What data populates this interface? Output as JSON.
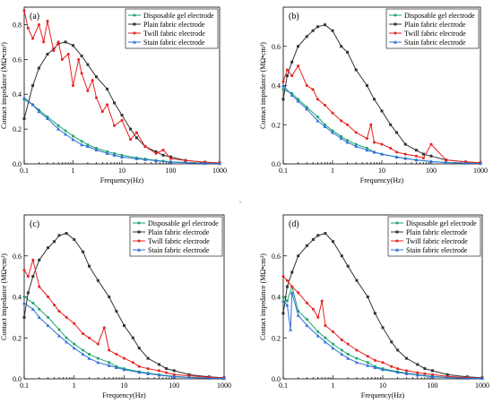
{
  "figure": {
    "center_mark": "."
  },
  "chart_data": [
    {
      "type": "line",
      "panel_label": "(a)",
      "xlabel": "Frequency(Hz)",
      "ylabel": "Contact impedance (MΩ•cm²)",
      "xscale": "log",
      "xlim": [
        0.1,
        1000
      ],
      "ylim": [
        0.0,
        0.9
      ],
      "xticks": [
        "0.1",
        "1",
        "10",
        "100",
        "1000"
      ],
      "yticks": [
        "0.0",
        "0.2",
        "0.4",
        "0.6",
        "0.8"
      ],
      "legend_position": "top-right",
      "series": [
        {
          "name": "Disposable gel electrode",
          "color": "#1aa56a",
          "marker": "circle",
          "x": [
            0.1,
            0.15,
            0.2,
            0.3,
            0.5,
            0.7,
            1,
            1.5,
            2,
            3,
            5,
            7,
            10,
            20,
            30,
            50,
            70,
            100,
            200,
            500,
            1000
          ],
          "y": [
            0.37,
            0.34,
            0.31,
            0.27,
            0.22,
            0.19,
            0.16,
            0.13,
            0.11,
            0.09,
            0.07,
            0.06,
            0.05,
            0.035,
            0.028,
            0.02,
            0.016,
            0.012,
            0.008,
            0.004,
            0.002
          ]
        },
        {
          "name": "Plain fabric electrode",
          "color": "#333333",
          "marker": "square",
          "x": [
            0.1,
            0.15,
            0.2,
            0.3,
            0.4,
            0.5,
            0.7,
            1,
            1.5,
            2,
            3,
            5,
            7,
            10,
            15,
            20,
            30,
            50,
            70,
            100,
            200,
            500,
            1000
          ],
          "y": [
            0.26,
            0.45,
            0.55,
            0.63,
            0.66,
            0.69,
            0.7,
            0.68,
            0.62,
            0.57,
            0.5,
            0.43,
            0.35,
            0.28,
            0.2,
            0.15,
            0.1,
            0.07,
            0.05,
            0.04,
            0.02,
            0.01,
            0.005
          ]
        },
        {
          "name": "Twill fabric electrode",
          "color": "#e8211f",
          "marker": "circle",
          "x": [
            0.1,
            0.12,
            0.15,
            0.2,
            0.25,
            0.3,
            0.4,
            0.5,
            0.6,
            0.8,
            1,
            1.3,
            1.5,
            2,
            2.5,
            3,
            4,
            5,
            7,
            10,
            15,
            20,
            30,
            50,
            70,
            100,
            200,
            500,
            1000
          ],
          "y": [
            0.88,
            0.78,
            0.72,
            0.8,
            0.7,
            0.82,
            0.65,
            0.7,
            0.6,
            0.63,
            0.45,
            0.6,
            0.52,
            0.42,
            0.48,
            0.38,
            0.3,
            0.34,
            0.22,
            0.25,
            0.14,
            0.18,
            0.1,
            0.06,
            0.08,
            0.03,
            0.02,
            0.01,
            0.005
          ]
        },
        {
          "name": "Stain fabric electrode",
          "color": "#2f6fd8",
          "marker": "triangle",
          "x": [
            0.1,
            0.15,
            0.2,
            0.3,
            0.5,
            0.7,
            1,
            1.5,
            2,
            3,
            5,
            7,
            10,
            20,
            30,
            50,
            100,
            200,
            500,
            1000
          ],
          "y": [
            0.38,
            0.34,
            0.3,
            0.26,
            0.2,
            0.17,
            0.14,
            0.11,
            0.1,
            0.08,
            0.06,
            0.05,
            0.04,
            0.03,
            0.025,
            0.018,
            0.01,
            0.006,
            0.003,
            0.002
          ]
        }
      ]
    },
    {
      "type": "line",
      "panel_label": "(b)",
      "xlabel": "Frequency(Hz)",
      "ylabel": "Contact impedance (MΩ•cm²)",
      "xscale": "log",
      "xlim": [
        0.1,
        1000
      ],
      "ylim": [
        0.0,
        0.8
      ],
      "xticks": [
        "0.1",
        "1",
        "10",
        "100",
        "1000"
      ],
      "yticks": [
        "0.0",
        "0.2",
        "0.4",
        "0.6"
      ],
      "legend_position": "top-right",
      "series": [
        {
          "name": "Disposable gel electrode",
          "color": "#1aa56a",
          "marker": "circle",
          "x": [
            0.1,
            0.15,
            0.2,
            0.3,
            0.5,
            0.7,
            1,
            1.5,
            2,
            3,
            5,
            7,
            10,
            20,
            30,
            50,
            100,
            200,
            500,
            1000
          ],
          "y": [
            0.38,
            0.36,
            0.33,
            0.29,
            0.24,
            0.2,
            0.17,
            0.14,
            0.12,
            0.1,
            0.08,
            0.06,
            0.05,
            0.035,
            0.028,
            0.02,
            0.012,
            0.007,
            0.004,
            0.002
          ]
        },
        {
          "name": "Plain fabric electrode",
          "color": "#333333",
          "marker": "square",
          "x": [
            0.1,
            0.12,
            0.15,
            0.2,
            0.3,
            0.4,
            0.5,
            0.7,
            1,
            1.5,
            2,
            3,
            5,
            7,
            10,
            15,
            20,
            30,
            50,
            70,
            100,
            200,
            500,
            1000
          ],
          "y": [
            0.33,
            0.45,
            0.52,
            0.6,
            0.65,
            0.68,
            0.7,
            0.71,
            0.68,
            0.6,
            0.57,
            0.48,
            0.4,
            0.33,
            0.27,
            0.2,
            0.16,
            0.1,
            0.07,
            0.05,
            0.04,
            0.02,
            0.01,
            0.005
          ]
        },
        {
          "name": "Twill fabric electrode",
          "color": "#e8211f",
          "marker": "circle",
          "x": [
            0.1,
            0.12,
            0.15,
            0.2,
            0.3,
            0.4,
            0.5,
            0.7,
            1,
            1.5,
            2,
            3,
            5,
            6,
            7,
            10,
            15,
            20,
            30,
            50,
            70,
            100,
            200,
            500,
            1000
          ],
          "y": [
            0.42,
            0.48,
            0.45,
            0.5,
            0.4,
            0.38,
            0.33,
            0.3,
            0.26,
            0.22,
            0.2,
            0.16,
            0.13,
            0.2,
            0.11,
            0.1,
            0.08,
            0.06,
            0.05,
            0.04,
            0.03,
            0.1,
            0.02,
            0.01,
            0.005
          ]
        },
        {
          "name": "Stain fabric electrode",
          "color": "#2f6fd8",
          "marker": "triangle",
          "x": [
            0.1,
            0.15,
            0.2,
            0.3,
            0.5,
            0.7,
            1,
            1.5,
            2,
            3,
            5,
            7,
            10,
            20,
            30,
            50,
            100,
            200,
            500,
            1000
          ],
          "y": [
            0.4,
            0.35,
            0.32,
            0.28,
            0.22,
            0.19,
            0.16,
            0.13,
            0.11,
            0.09,
            0.07,
            0.06,
            0.05,
            0.035,
            0.028,
            0.02,
            0.012,
            0.007,
            0.004,
            0.002
          ]
        }
      ]
    },
    {
      "type": "line",
      "panel_label": "(c)",
      "xlabel": "Frequency(Hz)",
      "ylabel": "Contact impedance (MΩ•cm²)",
      "xscale": "log",
      "xlim": [
        0.1,
        1000
      ],
      "ylim": [
        0.0,
        0.8
      ],
      "xticks": [
        "0.1",
        "1",
        "10",
        "100",
        "1000"
      ],
      "yticks": [
        "0.0",
        "0.2",
        "0.4",
        "0.6"
      ],
      "legend_position": "top-right",
      "series": [
        {
          "name": "Disposable gel electrode",
          "color": "#1aa56a",
          "marker": "circle",
          "x": [
            0.1,
            0.15,
            0.2,
            0.3,
            0.5,
            0.7,
            1,
            1.5,
            2,
            3,
            5,
            7,
            10,
            20,
            30,
            50,
            100,
            200,
            500,
            1000
          ],
          "y": [
            0.4,
            0.37,
            0.34,
            0.3,
            0.24,
            0.2,
            0.17,
            0.14,
            0.12,
            0.1,
            0.08,
            0.06,
            0.05,
            0.035,
            0.028,
            0.02,
            0.012,
            0.007,
            0.004,
            0.002
          ]
        },
        {
          "name": "Plain fabric electrode",
          "color": "#333333",
          "marker": "square",
          "x": [
            0.1,
            0.12,
            0.15,
            0.2,
            0.3,
            0.4,
            0.5,
            0.7,
            1,
            1.5,
            2,
            3,
            5,
            7,
            10,
            15,
            20,
            30,
            50,
            70,
            100,
            200,
            500,
            1000
          ],
          "y": [
            0.3,
            0.42,
            0.5,
            0.58,
            0.64,
            0.67,
            0.7,
            0.71,
            0.68,
            0.62,
            0.55,
            0.48,
            0.4,
            0.33,
            0.26,
            0.2,
            0.15,
            0.1,
            0.07,
            0.05,
            0.04,
            0.02,
            0.01,
            0.005
          ]
        },
        {
          "name": "Twill fabric electrode",
          "color": "#e8211f",
          "marker": "circle",
          "x": [
            0.1,
            0.12,
            0.15,
            0.2,
            0.3,
            0.4,
            0.5,
            0.7,
            1,
            1.5,
            2,
            3,
            4,
            5,
            7,
            10,
            15,
            20,
            30,
            50,
            70,
            100,
            200,
            500,
            1000
          ],
          "y": [
            0.53,
            0.5,
            0.58,
            0.45,
            0.4,
            0.36,
            0.33,
            0.3,
            0.27,
            0.22,
            0.2,
            0.17,
            0.25,
            0.14,
            0.12,
            0.1,
            0.08,
            0.06,
            0.05,
            0.04,
            0.03,
            0.02,
            0.015,
            0.008,
            0.004
          ]
        },
        {
          "name": "Stain fabric electrode",
          "color": "#2f6fd8",
          "marker": "triangle",
          "x": [
            0.1,
            0.15,
            0.2,
            0.3,
            0.5,
            0.7,
            1,
            1.5,
            2,
            3,
            5,
            7,
            10,
            20,
            30,
            50,
            100,
            200,
            500,
            1000
          ],
          "y": [
            0.37,
            0.34,
            0.3,
            0.26,
            0.21,
            0.18,
            0.15,
            0.12,
            0.1,
            0.08,
            0.065,
            0.055,
            0.045,
            0.032,
            0.025,
            0.018,
            0.01,
            0.006,
            0.003,
            0.002
          ]
        }
      ]
    },
    {
      "type": "line",
      "panel_label": "(d)",
      "xlabel": "Frequency(Hz)",
      "ylabel": "Contact impedance (MΩ•cm²)",
      "xscale": "log",
      "xlim": [
        0.1,
        1000
      ],
      "ylim": [
        0.0,
        0.8
      ],
      "xticks": [
        "0.1",
        "1",
        "10",
        "100",
        "1000"
      ],
      "yticks": [
        "0.0",
        "0.2",
        "0.4",
        "0.6"
      ],
      "legend_position": "top-right",
      "series": [
        {
          "name": "Disposable gel electrode",
          "color": "#1aa56a",
          "marker": "circle",
          "x": [
            0.1,
            0.12,
            0.15,
            0.2,
            0.3,
            0.5,
            0.7,
            1,
            1.5,
            2,
            3,
            5,
            7,
            10,
            20,
            30,
            50,
            100,
            200,
            500,
            1000
          ],
          "y": [
            0.4,
            0.38,
            0.45,
            0.33,
            0.29,
            0.23,
            0.2,
            0.17,
            0.14,
            0.12,
            0.1,
            0.08,
            0.06,
            0.05,
            0.035,
            0.028,
            0.02,
            0.012,
            0.007,
            0.004,
            0.002
          ]
        },
        {
          "name": "Plain fabric electrode",
          "color": "#333333",
          "marker": "square",
          "x": [
            0.1,
            0.12,
            0.15,
            0.2,
            0.3,
            0.4,
            0.5,
            0.7,
            1,
            1.5,
            2,
            3,
            5,
            7,
            10,
            15,
            20,
            30,
            50,
            70,
            100,
            200,
            500,
            1000
          ],
          "y": [
            0.32,
            0.45,
            0.52,
            0.6,
            0.65,
            0.68,
            0.7,
            0.71,
            0.67,
            0.6,
            0.55,
            0.48,
            0.4,
            0.32,
            0.25,
            0.18,
            0.14,
            0.1,
            0.07,
            0.05,
            0.04,
            0.02,
            0.01,
            0.005
          ]
        },
        {
          "name": "Twill fabric electrode",
          "color": "#e8211f",
          "marker": "circle",
          "x": [
            0.1,
            0.12,
            0.15,
            0.2,
            0.3,
            0.4,
            0.5,
            0.6,
            0.7,
            1,
            1.5,
            2,
            3,
            5,
            7,
            10,
            15,
            20,
            30,
            50,
            70,
            100,
            200,
            500,
            1000
          ],
          "y": [
            0.5,
            0.48,
            0.45,
            0.42,
            0.37,
            0.34,
            0.3,
            0.38,
            0.26,
            0.23,
            0.19,
            0.17,
            0.14,
            0.11,
            0.09,
            0.08,
            0.06,
            0.05,
            0.04,
            0.03,
            0.025,
            0.02,
            0.012,
            0.006,
            0.003
          ]
        },
        {
          "name": "Stain fabric electrode",
          "color": "#2f6fd8",
          "marker": "triangle",
          "x": [
            0.1,
            0.12,
            0.14,
            0.15,
            0.2,
            0.3,
            0.5,
            0.7,
            1,
            1.5,
            2,
            3,
            5,
            7,
            10,
            20,
            30,
            50,
            100,
            200,
            500,
            1000
          ],
          "y": [
            0.38,
            0.36,
            0.24,
            0.42,
            0.31,
            0.26,
            0.21,
            0.18,
            0.15,
            0.12,
            0.1,
            0.08,
            0.065,
            0.055,
            0.045,
            0.032,
            0.025,
            0.018,
            0.01,
            0.006,
            0.003,
            0.002
          ]
        }
      ]
    }
  ]
}
